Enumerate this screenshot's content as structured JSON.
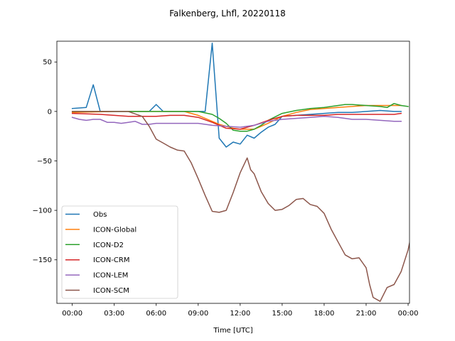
{
  "chart_data": {
    "type": "line",
    "title": "Falkenberg, Lhfl, 20220118",
    "xlabel": "Time [UTC]",
    "ylabel": "",
    "xlim": [
      -1.1,
      24.1
    ],
    "ylim": [
      -194,
      71
    ],
    "xticks": [
      {
        "value": 0,
        "label": "00:00"
      },
      {
        "value": 3,
        "label": "03:00"
      },
      {
        "value": 6,
        "label": "06:00"
      },
      {
        "value": 9,
        "label": "09:00"
      },
      {
        "value": 12,
        "label": "12:00"
      },
      {
        "value": 15,
        "label": "15:00"
      },
      {
        "value": 18,
        "label": "18:00"
      },
      {
        "value": 21,
        "label": "21:00"
      },
      {
        "value": 24,
        "label": "00:00"
      }
    ],
    "yticks": [
      {
        "value": 50,
        "label": "50"
      },
      {
        "value": 0,
        "label": "0"
      },
      {
        "value": -50,
        "label": "−50"
      },
      {
        "value": -100,
        "label": "−100"
      },
      {
        "value": -150,
        "label": "−150"
      }
    ],
    "grid": false,
    "legend_position": "lower-left",
    "series": [
      {
        "name": "Obs",
        "color": "#1f77b4",
        "x": [
          0,
          1,
          1.5,
          2,
          5.5,
          6,
          6.5,
          9.5,
          10,
          10.5,
          11,
          11.5,
          12,
          12.5,
          13,
          13.5,
          14,
          14.5,
          15,
          16,
          17,
          18,
          19,
          20,
          21,
          22,
          23,
          23.5
        ],
        "y": [
          3,
          4,
          27,
          0,
          0,
          7,
          0,
          0,
          69,
          -27,
          -36,
          -31,
          -33,
          -24,
          -27,
          -21,
          -16,
          -13,
          -5,
          -4,
          -3,
          -2,
          -1,
          -1,
          0,
          1,
          0,
          0
        ]
      },
      {
        "name": "ICON-Global",
        "color": "#ff7f0e",
        "x": [
          0,
          3,
          6,
          8,
          9,
          10,
          10.5,
          11,
          11.5,
          12,
          12.5,
          13,
          13.5,
          14,
          15,
          16,
          17,
          18,
          19,
          20,
          21,
          22,
          23,
          23.5
        ],
        "y": [
          -1,
          0,
          0,
          0,
          -4,
          -10,
          -13,
          -15,
          -17,
          -18,
          -18,
          -18,
          -15,
          -12,
          -5,
          -1,
          2,
          3,
          4,
          5,
          6,
          6,
          6,
          6
        ]
      },
      {
        "name": "ICON-D2",
        "color": "#2ca02c",
        "x": [
          0,
          2,
          5,
          8,
          9,
          10,
          10.5,
          11,
          11.5,
          12,
          12.5,
          13,
          13.5,
          14,
          15,
          16,
          17,
          18,
          19,
          19.5,
          20,
          21,
          22,
          22.5,
          23,
          23.5,
          24
        ],
        "y": [
          0,
          0,
          0,
          0,
          0,
          -3,
          -7,
          -12,
          -19,
          -20,
          -20,
          -18,
          -14,
          -9,
          -2,
          1,
          3,
          4,
          6,
          7,
          7,
          6,
          5,
          4,
          8,
          6,
          5
        ]
      },
      {
        "name": "ICON-CRM",
        "color": "#d62728",
        "x": [
          0,
          2,
          4,
          6,
          7,
          8,
          9,
          10,
          11,
          12,
          13,
          14,
          15,
          16,
          17,
          18,
          19,
          20,
          21,
          22,
          23,
          23.5
        ],
        "y": [
          -2,
          -3,
          -5,
          -5,
          -4,
          -4,
          -6,
          -11,
          -17,
          -18,
          -14,
          -9,
          -5,
          -4,
          -4,
          -4,
          -3,
          -3,
          -3,
          -3,
          -3,
          -2
        ]
      },
      {
        "name": "ICON-LEM",
        "color": "#9467bd",
        "x": [
          0,
          0.5,
          1,
          1.5,
          2,
          2.5,
          3,
          3.5,
          4,
          4.5,
          5,
          5.5,
          6,
          7,
          8,
          9,
          10,
          11,
          12,
          13,
          14,
          15,
          16,
          17,
          18,
          19,
          20,
          21,
          22,
          23,
          23.5
        ],
        "y": [
          -6,
          -8,
          -9,
          -8,
          -8,
          -11,
          -11,
          -12,
          -11,
          -10,
          -13,
          -13,
          -12,
          -12,
          -12,
          -12,
          -14,
          -15,
          -16,
          -14,
          -10,
          -8,
          -7,
          -6,
          -5,
          -6,
          -8,
          -8,
          -9,
          -10,
          -10
        ]
      },
      {
        "name": "ICON-SCM",
        "color": "#8c564b",
        "x": [
          0,
          1,
          2,
          3,
          4,
          5,
          5.5,
          6,
          6.5,
          7,
          7.5,
          8,
          8.5,
          9,
          9.5,
          10,
          10.5,
          11,
          11.5,
          12,
          12.5,
          12.75,
          13,
          13.5,
          14,
          14.5,
          15,
          15.5,
          16,
          16.5,
          17,
          17.5,
          18,
          18.5,
          19,
          19.5,
          20,
          20.5,
          21,
          21.25,
          21.5,
          22,
          22.5,
          23,
          23.5,
          24,
          24.3
        ],
        "y": [
          0,
          0,
          0,
          0,
          0,
          -5,
          -15,
          -28,
          -32,
          -36,
          -39,
          -40,
          -52,
          -68,
          -85,
          -101,
          -102,
          -100,
          -82,
          -62,
          -47,
          -59,
          -63,
          -81,
          -93,
          -100,
          -99,
          -95,
          -89,
          -88,
          -94,
          -96,
          -103,
          -119,
          -132,
          -145,
          -149,
          -148,
          -158,
          -175,
          -188,
          -192,
          -178,
          -175,
          -162,
          -140,
          -120
        ]
      }
    ]
  }
}
